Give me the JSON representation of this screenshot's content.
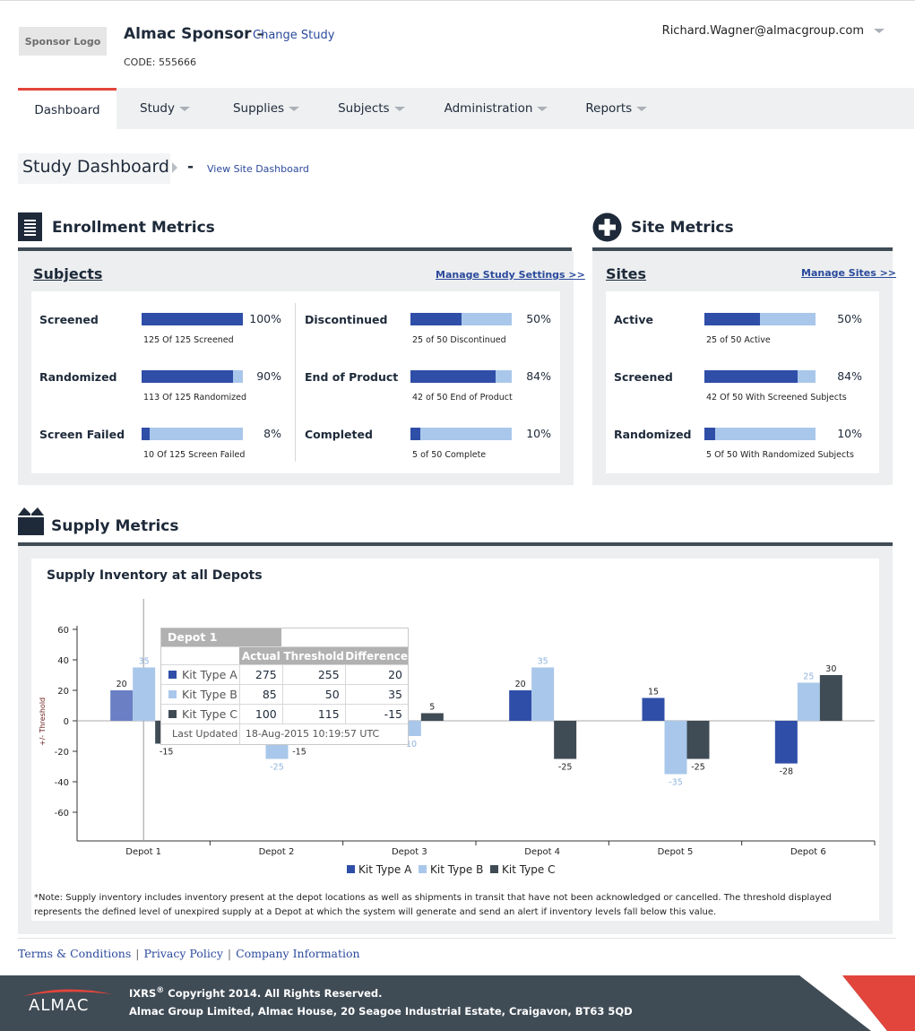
{
  "header": {
    "logo_label": "Sponsor Logo",
    "sponsor": "Almac Sponsor",
    "sponsor_sep": "–",
    "change_study": "Change Study",
    "code": "CODE: 555666",
    "user_email": "Richard.Wagner@almacgroup.com"
  },
  "nav": {
    "items": [
      {
        "label": "Dashboard"
      },
      {
        "label": "Study"
      },
      {
        "label": "Supplies"
      },
      {
        "label": "Subjects"
      },
      {
        "label": "Administration"
      },
      {
        "label": "Reports"
      }
    ]
  },
  "page": {
    "title": "Study Dashboard",
    "sep": "-",
    "view_site": "View Site Dashboard"
  },
  "enrollment": {
    "title": "Enrollment Metrics",
    "panel_title": "Subjects",
    "link": "Manage Study Settings >>",
    "metrics": [
      {
        "label": "Screened",
        "pct": "100%",
        "fraction": 1.0,
        "sub": "125 Of 125 Screened"
      },
      {
        "label": "Randomized",
        "pct": "90%",
        "fraction": 0.9,
        "sub": "113 Of 125 Randomized"
      },
      {
        "label": "Screen Failed",
        "pct": "8%",
        "fraction": 0.08,
        "sub": "10 Of 125 Screen Failed"
      },
      {
        "label": "Discontinued",
        "pct": "50%",
        "fraction": 0.5,
        "sub": "25 of 50 Discontinued"
      },
      {
        "label": "End of Product",
        "pct": "84%",
        "fraction": 0.84,
        "sub": "42 of 50 End of Product"
      },
      {
        "label": "Completed",
        "pct": "10%",
        "fraction": 0.1,
        "sub": "5 of 50 Complete"
      }
    ]
  },
  "site": {
    "title": "Site Metrics",
    "panel_title": "Sites",
    "link": "Manage Sites >>",
    "metrics": [
      {
        "label": "Active",
        "pct": "50%",
        "fraction": 0.5,
        "sub": "25 of 50 Active"
      },
      {
        "label": "Screened",
        "pct": "84%",
        "fraction": 0.84,
        "sub": "42 Of 50 With Screened Subjects"
      },
      {
        "label": "Randomized",
        "pct": "10%",
        "fraction": 0.1,
        "sub": "5 Of 50 With Randomized Subjects"
      }
    ]
  },
  "supply": {
    "title": "Supply Metrics",
    "note": "*Note: Supply inventory includes inventory present at the depot locations as well as shipments in transit that have not been acknowledged or cancelled. The threshold displayed represents the defined level of unexpired supply at a Depot at which the system will generate and send an alert if inventory levels fall below this value."
  },
  "chart_data": {
    "type": "bar",
    "title": "Supply Inventory at all Depots",
    "ylabel": "+/- Threshold",
    "xlabel": "",
    "ylim": [
      -80,
      70
    ],
    "yticks": [
      60,
      40,
      20,
      0,
      -20,
      -40,
      -60
    ],
    "categories": [
      "Depot 1",
      "Depot 2",
      "Depot 3",
      "Depot 4",
      "Depot 5",
      "Depot 6"
    ],
    "series": [
      {
        "name": "Kit Type A",
        "color": "#2f4ea8",
        "values": [
          20,
          null,
          null,
          20,
          15,
          -28
        ]
      },
      {
        "name": "Kit Type B",
        "color": "#a9c7ea",
        "values": [
          35,
          -25,
          -10,
          35,
          -35,
          25
        ]
      },
      {
        "name": "Kit Type C",
        "color": "#3f4b55",
        "values": [
          -15,
          -15,
          5,
          -25,
          -25,
          30
        ]
      }
    ],
    "legend": "bottom",
    "tooltip": {
      "title": "Depot 1",
      "headers": [
        "Actual",
        "Threshold",
        "Difference"
      ],
      "rows": [
        {
          "name": "Kit Type A",
          "color": "#2f4ea8",
          "actual": "275",
          "threshold": "255",
          "difference": "20"
        },
        {
          "name": "Kit Type B",
          "color": "#a9c7ea",
          "actual": "85",
          "threshold": "50",
          "difference": "35"
        },
        {
          "name": "Kit Type C",
          "color": "#3f4b55",
          "actual": "100",
          "threshold": "115",
          "difference": "-15"
        }
      ],
      "updated_label": "Last Updated",
      "updated_value": "18-Aug-2015 10:19:57 UTC"
    }
  },
  "footer": {
    "links": [
      "Terms & Conditions",
      "Privacy Policy",
      "Company Information"
    ],
    "brand": "ALMAC",
    "product": "IXRS",
    "reg": "®",
    "copyright": " Copyright 2014. All Rights Reserved.",
    "address": "Almac Group Limited, Almac House, 20 Seagoe Industrial Estate, Craigavon, BT63 5QD"
  },
  "colors": {
    "accent": "#e2453c",
    "primary": "#2f4ea8",
    "light": "#a9c7ea",
    "dark": "#3f4b55"
  }
}
